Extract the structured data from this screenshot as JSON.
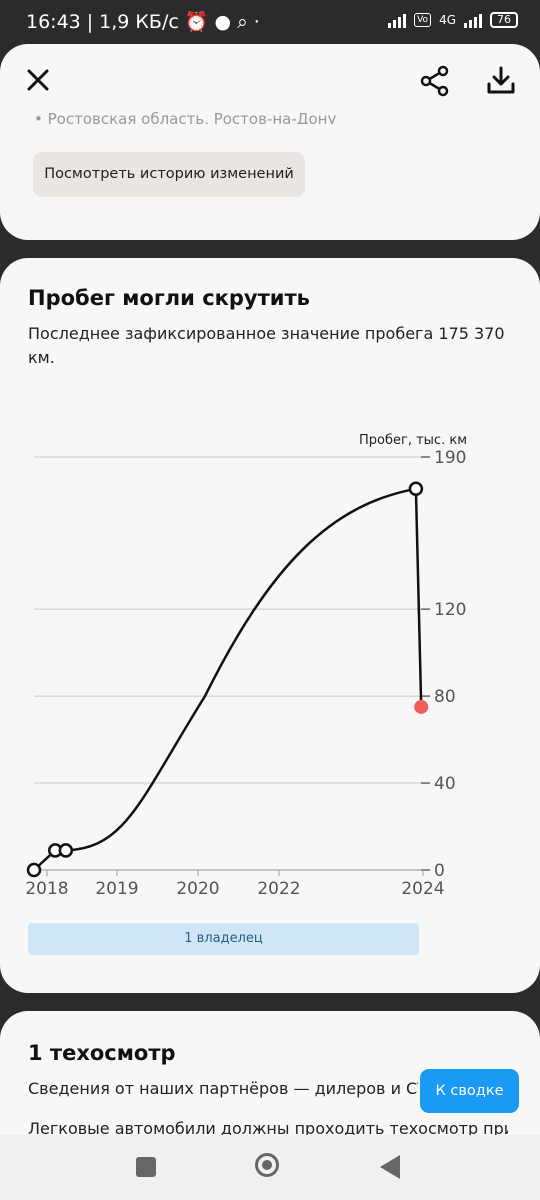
{
  "status_bar": {
    "time": "16:43",
    "speed": "1,9 КБ/с",
    "network": "4G",
    "battery": "76"
  },
  "header": {
    "region": "Ростовская область, Ростов-на-Дону",
    "history_button": "Посмотреть историю изменений"
  },
  "mileage_card": {
    "title": "Пробег могли скрутить",
    "description": "Последнее зафиксированное значение пробега 175 370 км.",
    "owner_label": "1 владелец"
  },
  "chart_data": {
    "type": "line",
    "title": "",
    "ylabel": "Пробег, тыс. км",
    "yticks": [
      0,
      40,
      80,
      120,
      190
    ],
    "xticks": [
      "2018",
      "2019",
      "2020",
      "2022",
      "2024"
    ],
    "ylim": [
      0,
      190
    ],
    "grid": true,
    "points": [
      {
        "x": "2018-01",
        "y": 0,
        "suspicious": false
      },
      {
        "x": "2018-05",
        "y": 9,
        "suspicious": false
      },
      {
        "x": "2018-07",
        "y": 9,
        "suspicious": false
      },
      {
        "x": "2024-01",
        "y": 175.37,
        "suspicious": false
      },
      {
        "x": "2024-02",
        "y": 75,
        "suspicious": true
      }
    ],
    "colors": {
      "line": "#111111",
      "suspicious": "#f25c5c",
      "grid": "#c9c9c9"
    }
  },
  "inspection_card": {
    "title": "1 техосмотр",
    "line1": "Сведения от наших партнёров — дилеров и СТО",
    "line2": "Легковые автомобили должны проходить техосмотр при"
  },
  "summary_button": "К сводке"
}
